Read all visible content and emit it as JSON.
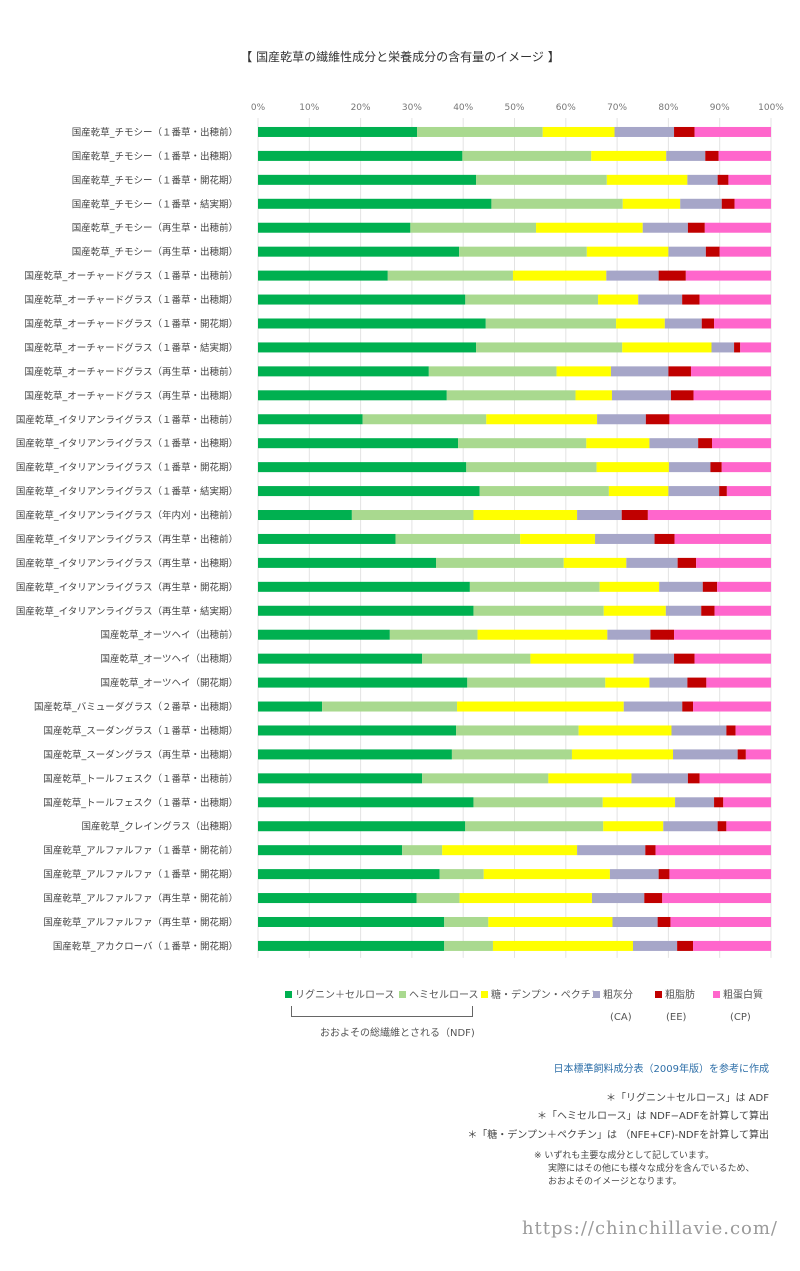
{
  "chart_data": {
    "type": "bar",
    "orientation": "horizontal",
    "stacked": "percent",
    "title": "【 国産乾草の繊維性成分と栄養成分の含有量のイメージ 】",
    "x_ticks": [
      "0%",
      "10%",
      "20%",
      "30%",
      "40%",
      "50%",
      "60%",
      "70%",
      "80%",
      "90%",
      "100%"
    ],
    "xlim": [
      0,
      100
    ],
    "grid": true,
    "categories": [
      "国産乾草_チモシー（１番草・出穂前）",
      "国産乾草_チモシー（１番草・出穂期）",
      "国産乾草_チモシー（１番草・開花期）",
      "国産乾草_チモシー（１番草・結実期）",
      "国産乾草_チモシー（再生草・出穂前）",
      "国産乾草_チモシー（再生草・出穂期）",
      "国産乾草_オーチャードグラス（１番草・出穂前）",
      "国産乾草_オーチャードグラス（１番草・出穂期）",
      "国産乾草_オーチャードグラス（１番草・開花期）",
      "国産乾草_オーチャードグラス（１番草・結実期）",
      "国産乾草_オーチャードグラス（再生草・出穂前）",
      "国産乾草_オーチャードグラス（再生草・出穂期）",
      "国産乾草_イタリアンライグラス（１番草・出穂前）",
      "国産乾草_イタリアンライグラス（１番草・出穂期）",
      "国産乾草_イタリアンライグラス（１番草・開花期）",
      "国産乾草_イタリアンライグラス（１番草・結実期）",
      "国産乾草_イタリアンライグラス（年内刈・出穂前）",
      "国産乾草_イタリアンライグラス（再生草・出穂前）",
      "国産乾草_イタリアンライグラス（再生草・出穂期）",
      "国産乾草_イタリアンライグラス（再生草・開花期）",
      "国産乾草_イタリアンライグラス（再生草・結実期）",
      "国産乾草_オーツヘイ（出穂前）",
      "国産乾草_オーツヘイ（出穂期）",
      "国産乾草_オーツヘイ（開花期）",
      "国産乾草_バミューダグラス（２番草・出穂期）",
      "国産乾草_スーダングラス（１番草・出穂期）",
      "国産乾草_スーダングラス（再生草・出穂期）",
      "国産乾草_トールフェスク（１番草・出穂前）",
      "国産乾草_トールフェスク（１番草・出穂期）",
      "国産乾草_クレイングラス（出穂期）",
      "国産乾草_アルファルファ（１番草・開花前）",
      "国産乾草_アルファルファ（１番草・開花期）",
      "国産乾草_アルファルファ（再生草・開花前）",
      "国産乾草_アルファルファ（再生草・開花期）",
      "国産乾草_アカクローバ（１番草・開花期）"
    ],
    "series": [
      {
        "name": "リグニン＋セルロース",
        "color": "#00b050",
        "values": [
          31,
          39.8,
          42.5,
          45.5,
          29.7,
          39.2,
          25.3,
          39.2,
          44.4,
          42.5,
          33.3,
          36.8,
          20.4,
          39,
          40.6,
          43.2,
          18.3,
          26.8,
          34.7,
          41.3,
          42,
          25.7,
          32,
          40.8,
          12.5,
          38.6,
          37.8,
          32,
          42,
          40.4,
          28.1,
          35.4,
          30.9,
          36.3,
          36.3
        ]
      },
      {
        "name": "ヘミセルロース",
        "color": "#a9d98f",
        "values": [
          24.5,
          25.1,
          25.5,
          25.6,
          24.5,
          24.9,
          24.4,
          25.1,
          25.4,
          28.5,
          24.9,
          25.1,
          24.1,
          25,
          25.4,
          25.2,
          23.7,
          24.3,
          24.9,
          25.3,
          25.4,
          17.1,
          21.1,
          26.9,
          26.3,
          23.9,
          23.4,
          24.6,
          25.2,
          26.9,
          7.8,
          8.6,
          8.4,
          8.6,
          9.5
        ]
      },
      {
        "name": "糖・デンプン・ペクチン",
        "color": "#ffff00",
        "values": [
          14,
          14.6,
          15.7,
          11.2,
          20.8,
          15.9,
          18.2,
          7.6,
          9.5,
          17.4,
          10.6,
          7.1,
          21.6,
          12.3,
          14.1,
          11.6,
          20.2,
          14.6,
          12.2,
          11.6,
          12.1,
          25.3,
          20.1,
          8.6,
          32.5,
          18.1,
          19.7,
          16.2,
          14.1,
          11.7,
          26.3,
          24.6,
          25.8,
          24.2,
          27.3
        ]
      },
      {
        "name": "粗灰分",
        "color": "#a6a6c8",
        "values": [
          11.6,
          7.6,
          5.9,
          8.1,
          8.8,
          7.3,
          10.2,
          8.3,
          7.2,
          4.4,
          11.2,
          11.5,
          9.5,
          9.5,
          8.1,
          9.9,
          8.7,
          11.6,
          10,
          8.5,
          6.9,
          8.4,
          7.9,
          7.4,
          11.4,
          10.7,
          12.6,
          11,
          7.6,
          10.6,
          13.3,
          9.5,
          10.2,
          8.8,
          8.6
        ]
      },
      {
        "name": "粗脂肪",
        "color": "#c00000",
        "values": [
          4,
          2.6,
          2.1,
          2.5,
          3.3,
          2.7,
          5.3,
          3.3,
          2.4,
          1.2,
          4.4,
          4.4,
          4.6,
          2.7,
          2.2,
          1.5,
          5.1,
          3.9,
          3.6,
          2.8,
          2.6,
          4.6,
          4,
          3.7,
          2.1,
          1.8,
          1.6,
          2.3,
          1.8,
          1.7,
          2,
          2.1,
          3.5,
          2.5,
          3.1
        ]
      },
      {
        "name": "粗蛋白質",
        "color": "#ff66cc",
        "values": [
          14.9,
          10.2,
          8.3,
          7.1,
          12.9,
          10,
          16.6,
          13.5,
          11.1,
          6,
          15.6,
          15.1,
          19.8,
          11.5,
          9.6,
          8.6,
          24,
          18.8,
          14.6,
          10.5,
          11,
          18.9,
          14.9,
          12.6,
          15.2,
          6.9,
          4.9,
          13.9,
          9.3,
          8.7,
          22.5,
          19.8,
          21.2,
          19.6,
          15.2
        ]
      }
    ]
  },
  "legend_groups": {
    "ndf_label": "おおよその総繊維とされる（NDF)",
    "abbr": [
      "(CA)",
      "(EE)",
      "(CP)"
    ]
  },
  "notes": {
    "source": "日本標準飼料成分表（2009年版）を参考に作成",
    "line1": "＊「リグニン＋セルロース」は ADF",
    "line2": "＊「ヘミセルロース」は NDF−ADFを計算して算出",
    "line3": "＊「糖・デンプン＋ペクチン」は （NFE+CF)-NDFを計算して算出",
    "remark1": "※ いずれも主要な成分として記しています。",
    "remark2": "実際にはその他にも様々な成分を含んでいるため、",
    "remark3": "おおよそのイメージとなります。"
  },
  "watermark": "https://chinchillavie.com/"
}
